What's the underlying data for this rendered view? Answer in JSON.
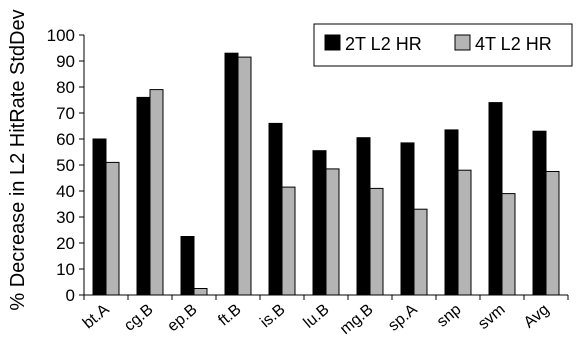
{
  "chart_data": {
    "type": "bar",
    "ylabel": "% Decrease in L2 HitRate StdDev",
    "xlabel": "",
    "ylim": [
      0,
      100
    ],
    "yticks": [
      0,
      10,
      20,
      30,
      40,
      50,
      60,
      70,
      80,
      90,
      100
    ],
    "grid": false,
    "legend_position": "top-right",
    "categories": [
      "bt.A",
      "cg.B",
      "ep.B",
      "ft.B",
      "is.B",
      "lu.B",
      "mg.B",
      "sp.A",
      "snp",
      "svm",
      "Avg"
    ],
    "series": [
      {
        "name": "2T L2 HR",
        "color": "#000000",
        "values": [
          60,
          76,
          22.5,
          93,
          66,
          55.5,
          60.5,
          58.5,
          63.5,
          74,
          63
        ]
      },
      {
        "name": "4T L2 HR",
        "color": "#b4b4b4",
        "values": [
          51,
          79,
          2.5,
          91.5,
          41.5,
          48.5,
          41,
          33,
          48,
          39,
          47.5
        ]
      }
    ]
  }
}
